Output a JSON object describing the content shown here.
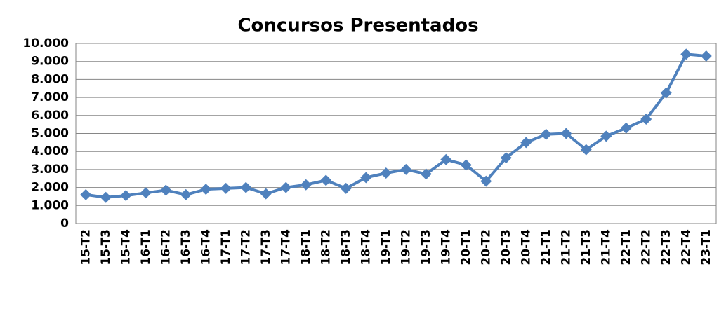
{
  "chart_data": {
    "type": "line",
    "title": "Concursos Presentados",
    "categories": [
      "15-T2",
      "15-T3",
      "15-T4",
      "16-T1",
      "16-T2",
      "16-T3",
      "16-T4",
      "17-T1",
      "17-T2",
      "17-T3",
      "17-T4",
      "18-T1",
      "18-T2",
      "18-T3",
      "18-T4",
      "19-T1",
      "19-T2",
      "19-T3",
      "19-T4",
      "20-T1",
      "20-T2",
      "20-T3",
      "20-T4",
      "21-T1",
      "21-T2",
      "21-T3",
      "21-T4",
      "22-T1",
      "22-T2",
      "22-T3",
      "22-T4",
      "23-T1"
    ],
    "values": [
      1600,
      1450,
      1550,
      1700,
      1850,
      1600,
      1900,
      1950,
      2000,
      1650,
      2000,
      2150,
      2400,
      1950,
      2550,
      2800,
      3000,
      2750,
      3550,
      3250,
      2350,
      3650,
      4500,
      4950,
      5000,
      4100,
      4850,
      5300,
      5800,
      7250,
      9400,
      9300
    ],
    "color": "#4f81bd",
    "ylim": [
      0,
      10000
    ],
    "yticks": [
      0,
      {
        "value": 1000,
        "label": "1.000"
      },
      {
        "value": 2000,
        "label": "2.000"
      },
      {
        "value": 3000,
        "label": "3.000"
      },
      {
        "value": 4000,
        "label": "4.000"
      },
      {
        "value": 5000,
        "label": "5.000"
      },
      {
        "value": 6000,
        "label": "6.000"
      },
      {
        "value": 7000,
        "label": "7.000"
      },
      {
        "value": 8000,
        "label": "8.000"
      },
      {
        "value": 9000,
        "label": "9.000"
      },
      {
        "value": 10000,
        "label": "10.000"
      }
    ],
    "grid": true
  }
}
